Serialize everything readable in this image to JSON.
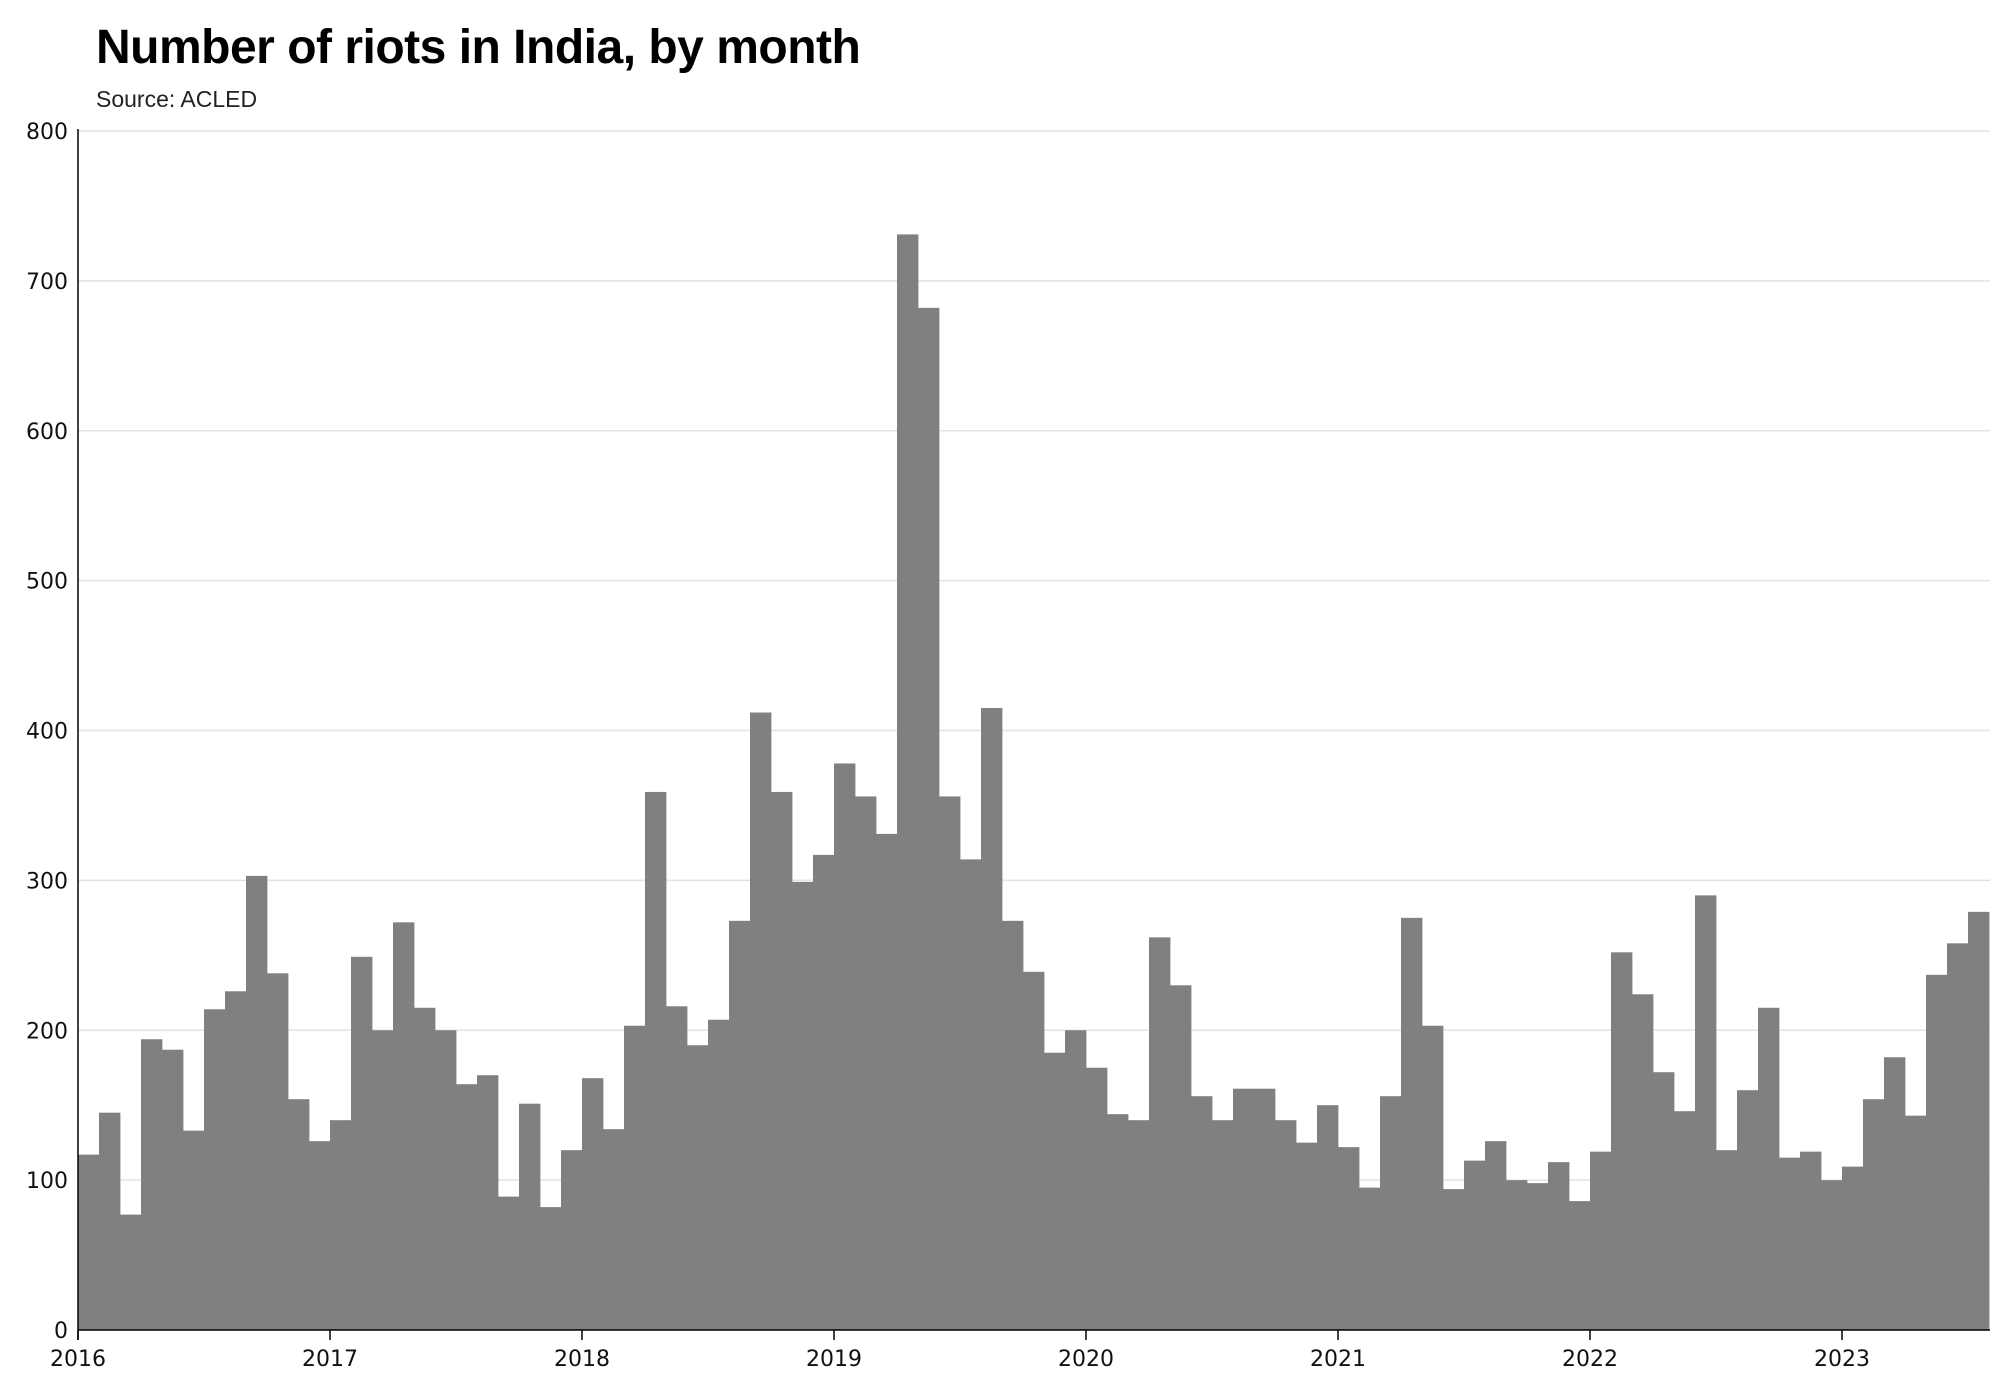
{
  "chart_data": {
    "type": "bar",
    "title": "Number of riots in India, by month",
    "subtitle": "Source: ACLED",
    "xlabel": "",
    "ylabel": "",
    "ylim": [
      0,
      800
    ],
    "yticks": [
      0,
      100,
      200,
      300,
      400,
      500,
      600,
      700,
      800
    ],
    "xticks": [
      "2016",
      "2017",
      "2018",
      "2019",
      "2020",
      "2021",
      "2022",
      "2023"
    ],
    "grid": true,
    "bar_color": "#808080",
    "grid_color": "#e3e3e3",
    "start": "2016-01",
    "categories": [
      "2016-01",
      "2016-02",
      "2016-03",
      "2016-04",
      "2016-05",
      "2016-06",
      "2016-07",
      "2016-08",
      "2016-09",
      "2016-10",
      "2016-11",
      "2016-12",
      "2017-01",
      "2017-02",
      "2017-03",
      "2017-04",
      "2017-05",
      "2017-06",
      "2017-07",
      "2017-08",
      "2017-09",
      "2017-10",
      "2017-11",
      "2017-12",
      "2018-01",
      "2018-02",
      "2018-03",
      "2018-04",
      "2018-05",
      "2018-06",
      "2018-07",
      "2018-08",
      "2018-09",
      "2018-10",
      "2018-11",
      "2018-12",
      "2019-01",
      "2019-02",
      "2019-03",
      "2019-04",
      "2019-05",
      "2019-06",
      "2019-07",
      "2019-08",
      "2019-09",
      "2019-10",
      "2019-11",
      "2019-12",
      "2020-01",
      "2020-02",
      "2020-03",
      "2020-04",
      "2020-05",
      "2020-06",
      "2020-07",
      "2020-08",
      "2020-09",
      "2020-10",
      "2020-11",
      "2020-12",
      "2021-01",
      "2021-02",
      "2021-03",
      "2021-04",
      "2021-05",
      "2021-06",
      "2021-07",
      "2021-08",
      "2021-09",
      "2021-10",
      "2021-11",
      "2021-12",
      "2022-01",
      "2022-02",
      "2022-03",
      "2022-04",
      "2022-05",
      "2022-06",
      "2022-07",
      "2022-08",
      "2022-09",
      "2022-10",
      "2022-11",
      "2022-12",
      "2023-01",
      "2023-02",
      "2023-03",
      "2023-04",
      "2023-05",
      "2023-06",
      "2023-07"
    ],
    "values": [
      117,
      145,
      77,
      194,
      187,
      133,
      214,
      226,
      303,
      238,
      154,
      126,
      140,
      249,
      200,
      272,
      215,
      200,
      164,
      170,
      89,
      151,
      82,
      120,
      168,
      134,
      203,
      359,
      216,
      190,
      207,
      273,
      412,
      359,
      299,
      317,
      378,
      356,
      331,
      731,
      682,
      356,
      314,
      415,
      273,
      239,
      185,
      200,
      175,
      144,
      140,
      262,
      230,
      156,
      140,
      161,
      161,
      140,
      125,
      150,
      122,
      95,
      156,
      275,
      203,
      94,
      113,
      126,
      100,
      98,
      112,
      86,
      119,
      252,
      224,
      172,
      146,
      290,
      120,
      160,
      215,
      115,
      119,
      100,
      109,
      154,
      182,
      143,
      237,
      258,
      279
    ]
  }
}
